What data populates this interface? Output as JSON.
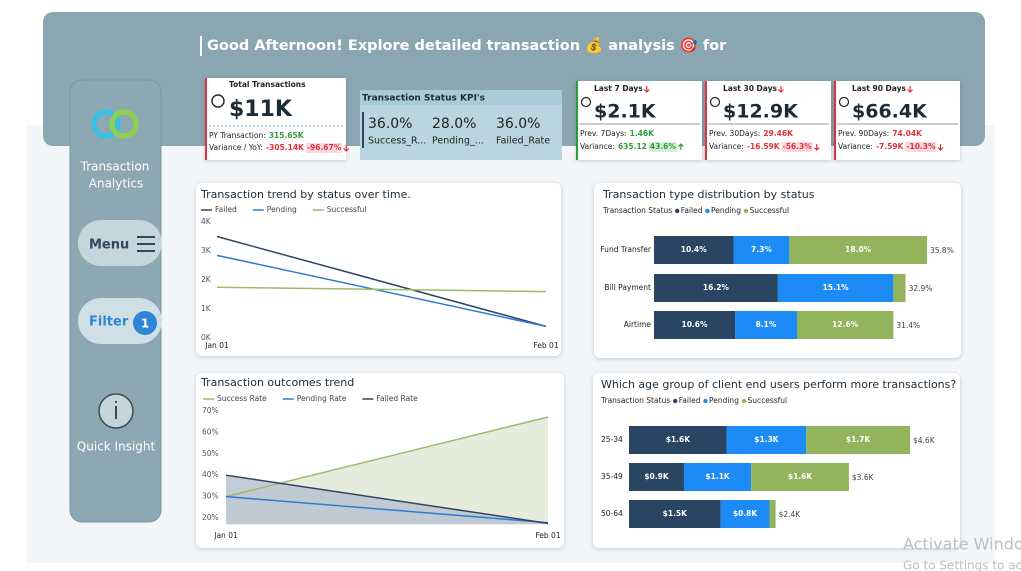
{
  "header": {
    "greeting": "Good Afternoon! Explore detailed transaction 💰 analysis 🎯 for"
  },
  "sidebar": {
    "title_lines": [
      "Transaction",
      "Analytics"
    ],
    "menu": "Menu",
    "filter": "Filter",
    "filter_count": "1",
    "quick_insight": "Quick Insight"
  },
  "total_card": {
    "title": "Total Transactions",
    "value": "$11K",
    "py_label": "PY Transaction:",
    "py_value": "315.65K",
    "variance_label": "Variance / YoY:",
    "variance": "-305.14K",
    "variance_pct": "-96.67%",
    "trend": "down"
  },
  "status_kpis": {
    "title": "Transaction Status KPI's",
    "items": [
      {
        "value": "36.0%",
        "label": "Success_R..."
      },
      {
        "value": "28.0%",
        "label": "Pending_..."
      },
      {
        "value": "36.0%",
        "label": "Failed_Rate"
      }
    ]
  },
  "period_cards": [
    {
      "title": "Last 7 Days",
      "value": "$2.1K",
      "prev_label": "Prev. 7Days:",
      "prev_value": "1.46K",
      "variance_label": "Variance:",
      "variance": "635.12",
      "variance_pct": "43.6%",
      "trend": "up"
    },
    {
      "title": "Last 30 Days",
      "value": "$12.9K",
      "prev_label": "Prev. 30Days:",
      "prev_value": "29.46K",
      "variance_label": "Variance:",
      "variance": "-16.59K",
      "variance_pct": "-56.3%",
      "trend": "down"
    },
    {
      "title": "Last 90 Days",
      "value": "$66.4K",
      "prev_label": "Prev. 90Days:",
      "prev_value": "74.04K",
      "variance_label": "Variance:",
      "variance": "-7.59K",
      "variance_pct": "-10.3%",
      "trend": "down"
    }
  ],
  "chart_data": [
    {
      "type": "line",
      "title": "Transaction trend by status over time.",
      "categories": [
        "Jan 01",
        "Feb 01"
      ],
      "series": [
        {
          "name": "Failed",
          "color": "#2d4563",
          "values": [
            3500,
            400
          ]
        },
        {
          "name": "Pending",
          "color": "#2f7bd4",
          "values": [
            2850,
            400
          ]
        },
        {
          "name": "Successful",
          "color": "#9cbb6a",
          "values": [
            1750,
            1600
          ]
        }
      ],
      "ylim": [
        0,
        4000
      ],
      "yticks": [
        {
          "value": 0,
          "label": "0K"
        },
        {
          "value": 1000,
          "label": "1K"
        },
        {
          "value": 2000,
          "label": "2K"
        },
        {
          "value": 3000,
          "label": "3K"
        },
        {
          "value": 4000,
          "label": "4K"
        }
      ]
    },
    {
      "type": "bar",
      "orientation": "horizontal",
      "stacked": true,
      "title": "Transaction type distribution by status",
      "legend_title": "Transaction Status",
      "categories": [
        "Fund Transfer",
        "Bill Payment",
        "Airtime"
      ],
      "series": [
        {
          "name": "Failed",
          "color": "#2a4562",
          "values": [
            10.4,
            16.2,
            10.6
          ],
          "value_labels": [
            "10.4%",
            "16.2%",
            "10.6%"
          ]
        },
        {
          "name": "Pending",
          "color": "#1c8bf5",
          "values": [
            7.3,
            15.1,
            8.1
          ],
          "value_labels": [
            "7.3%",
            "15.1%",
            "8.1%"
          ]
        },
        {
          "name": "Successful",
          "color": "#93b35c",
          "values": [
            18.0,
            1.6,
            12.6
          ],
          "value_labels": [
            "18.0%",
            null,
            "12.6%"
          ]
        }
      ],
      "total_labels": [
        "35.8%",
        "32.9%",
        "31.4%"
      ]
    },
    {
      "type": "area",
      "title": "Transaction outcomes trend",
      "categories": [
        "Jan 01",
        "Feb 01"
      ],
      "series": [
        {
          "name": "Success Rate",
          "color": "#9cbb6a",
          "area": "#e3e8d5",
          "values": [
            30,
            67.2
          ]
        },
        {
          "name": "Pending Rate",
          "color": "#2f7bd4",
          "values": [
            30,
            17.8
          ]
        },
        {
          "name": "Failed Rate",
          "color": "#2d4563",
          "area": "#b9c4d0",
          "values": [
            40,
            17.5
          ]
        }
      ],
      "ylim": [
        17,
        70
      ],
      "yticks": [
        {
          "value": 20,
          "label": "20%"
        },
        {
          "value": 30,
          "label": "30%"
        },
        {
          "value": 40,
          "label": "40%"
        },
        {
          "value": 50,
          "label": "50%"
        },
        {
          "value": 60,
          "label": "60%"
        },
        {
          "value": 70,
          "label": "70%"
        }
      ]
    },
    {
      "type": "bar",
      "orientation": "horizontal",
      "stacked": true,
      "title": "Which age group of client end users perform more transactions?",
      "legend_title": "Transaction Status",
      "categories": [
        "25-34",
        "35-49",
        "50-64"
      ],
      "series": [
        {
          "name": "Failed",
          "color": "#2a4562",
          "values": [
            1600,
            900,
            1500
          ],
          "value_labels": [
            "$1.6K",
            "$0.9K",
            "$1.5K"
          ]
        },
        {
          "name": "Pending",
          "color": "#1c8bf5",
          "values": [
            1300,
            1100,
            800
          ],
          "value_labels": [
            "$1.3K",
            "$1.1K",
            "$0.8K"
          ]
        },
        {
          "name": "Successful",
          "color": "#93b35c",
          "values": [
            1700,
            1600,
            100
          ],
          "value_labels": [
            "$1.7K",
            "$1.6K",
            null
          ]
        }
      ],
      "total_labels": [
        "$4.6K",
        "$3.6K",
        "$2.4K"
      ]
    }
  ],
  "watermark": {
    "line1": "Activate Windows",
    "line2": "Go to Settings to activate Windows."
  }
}
